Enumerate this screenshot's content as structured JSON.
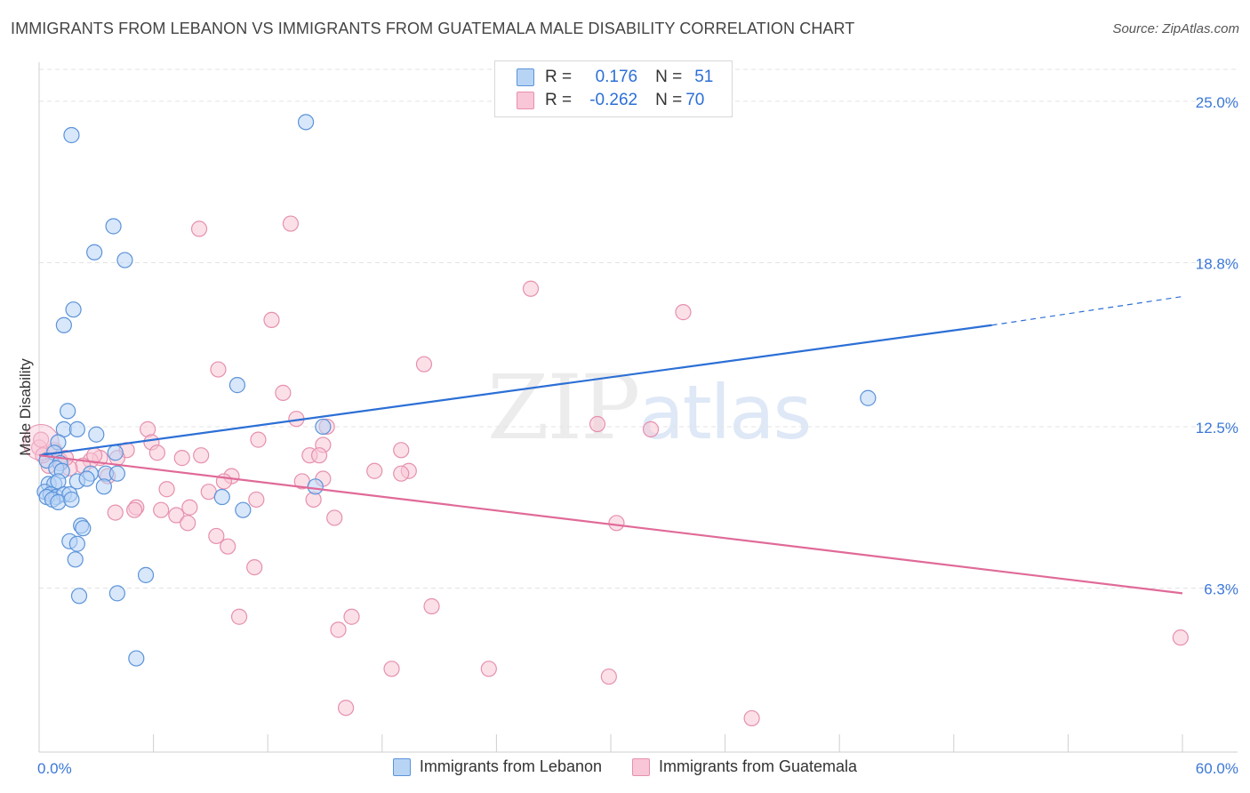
{
  "title": "IMMIGRANTS FROM LEBANON VS IMMIGRANTS FROM GUATEMALA MALE DISABILITY CORRELATION CHART",
  "source": "Source: ZipAtlas.com",
  "watermark": {
    "zip": "ZIP",
    "atlas": "atlas"
  },
  "legend_top": {
    "rows": [
      {
        "r_label": "R =",
        "r_value": "0.176",
        "n_label": "N =",
        "n_value": "51"
      },
      {
        "r_label": "R =",
        "r_value": "-0.262",
        "n_label": "N =",
        "n_value": "70"
      }
    ]
  },
  "legend_bottom": {
    "series1": "Immigrants from Lebanon",
    "series2": "Immigrants from Guatemala"
  },
  "colors": {
    "lebanon_fill": "#b8d4f5",
    "lebanon_stroke": "#5b93d9",
    "lebanon_line": "#2c6fd6",
    "guatemala_fill": "#f8c6d6",
    "guatemala_stroke": "#e690ae",
    "guatemala_line": "#e06a98",
    "axis_label": "#3b78d8",
    "grid": "#e3e3e3"
  },
  "chart_data": {
    "type": "scatter",
    "title": "IMMIGRANTS FROM LEBANON VS IMMIGRANTS FROM GUATEMALA MALE DISABILITY CORRELATION CHART",
    "xlabel": "",
    "ylabel": "Male Disability",
    "xlim": [
      0,
      60
    ],
    "ylim": [
      0,
      26.5
    ],
    "x_tick_labels": [
      {
        "value": 0,
        "label": "0.0%"
      },
      {
        "value": 60,
        "label": "60.0%"
      }
    ],
    "y_ticks": [
      {
        "value": 6.3,
        "label": "6.3%"
      },
      {
        "value": 12.5,
        "label": "12.5%"
      },
      {
        "value": 18.8,
        "label": "18.8%"
      },
      {
        "value": 25.0,
        "label": "25.0%"
      }
    ],
    "series": [
      {
        "name": "Immigrants from Lebanon",
        "r": 0.176,
        "n": 51,
        "trend": {
          "x0": 0,
          "y0": 11.4,
          "x1": 50,
          "y1": 16.4,
          "dashed_to_x": 60,
          "dashed_to_y": 17.5
        },
        "points": [
          [
            1.7,
            23.7
          ],
          [
            14.0,
            24.2
          ],
          [
            3.9,
            20.2
          ],
          [
            2.9,
            19.2
          ],
          [
            4.5,
            18.9
          ],
          [
            1.8,
            17.0
          ],
          [
            1.3,
            16.4
          ],
          [
            10.4,
            14.1
          ],
          [
            43.5,
            13.6
          ],
          [
            1.5,
            13.1
          ],
          [
            1.3,
            12.4
          ],
          [
            2.0,
            12.4
          ],
          [
            3.0,
            12.2
          ],
          [
            14.9,
            12.5
          ],
          [
            1.0,
            11.9
          ],
          [
            4.0,
            11.5
          ],
          [
            0.8,
            11.5
          ],
          [
            0.4,
            11.2
          ],
          [
            1.1,
            11.1
          ],
          [
            0.9,
            10.9
          ],
          [
            1.2,
            10.8
          ],
          [
            2.7,
            10.7
          ],
          [
            3.5,
            10.7
          ],
          [
            4.1,
            10.7
          ],
          [
            0.5,
            10.3
          ],
          [
            0.8,
            10.3
          ],
          [
            1.0,
            10.4
          ],
          [
            2.0,
            10.4
          ],
          [
            2.5,
            10.5
          ],
          [
            3.4,
            10.2
          ],
          [
            14.5,
            10.2
          ],
          [
            0.3,
            10.0
          ],
          [
            0.6,
            9.9
          ],
          [
            0.9,
            9.8
          ],
          [
            1.3,
            9.9
          ],
          [
            1.6,
            9.9
          ],
          [
            0.4,
            9.8
          ],
          [
            0.7,
            9.7
          ],
          [
            1.0,
            9.6
          ],
          [
            1.7,
            9.7
          ],
          [
            9.6,
            9.8
          ],
          [
            10.7,
            9.3
          ],
          [
            2.2,
            8.7
          ],
          [
            2.3,
            8.6
          ],
          [
            1.6,
            8.1
          ],
          [
            2.0,
            8.0
          ],
          [
            1.9,
            7.4
          ],
          [
            5.6,
            6.8
          ],
          [
            2.1,
            6.0
          ],
          [
            4.1,
            6.1
          ],
          [
            5.1,
            3.6
          ]
        ]
      },
      {
        "name": "Immigrants from Guatemala",
        "r": -0.262,
        "n": 70,
        "trend": {
          "x0": 0,
          "y0": 11.4,
          "x1": 60,
          "y1": 6.1
        },
        "points": [
          [
            0.0,
            11.7
          ],
          [
            8.4,
            20.1
          ],
          [
            13.2,
            20.3
          ],
          [
            25.8,
            17.8
          ],
          [
            33.8,
            16.9
          ],
          [
            12.2,
            16.6
          ],
          [
            9.4,
            14.7
          ],
          [
            20.2,
            14.9
          ],
          [
            12.8,
            13.8
          ],
          [
            13.5,
            12.8
          ],
          [
            29.3,
            12.6
          ],
          [
            15.1,
            12.5
          ],
          [
            32.1,
            12.4
          ],
          [
            5.7,
            12.4
          ],
          [
            11.5,
            12.0
          ],
          [
            5.9,
            11.9
          ],
          [
            14.9,
            11.8
          ],
          [
            0.8,
            11.6
          ],
          [
            6.2,
            11.5
          ],
          [
            19.0,
            11.6
          ],
          [
            4.6,
            11.6
          ],
          [
            14.2,
            11.4
          ],
          [
            14.7,
            11.4
          ],
          [
            8.5,
            11.4
          ],
          [
            7.5,
            11.3
          ],
          [
            3.2,
            11.3
          ],
          [
            2.7,
            11.2
          ],
          [
            4.1,
            11.3
          ],
          [
            2.3,
            11.0
          ],
          [
            1.1,
            11.2
          ],
          [
            0.5,
            11.0
          ],
          [
            1.6,
            10.9
          ],
          [
            17.6,
            10.8
          ],
          [
            19.4,
            10.8
          ],
          [
            19.0,
            10.7
          ],
          [
            10.1,
            10.6
          ],
          [
            3.6,
            10.6
          ],
          [
            9.7,
            10.4
          ],
          [
            13.8,
            10.4
          ],
          [
            14.9,
            10.5
          ],
          [
            6.7,
            10.1
          ],
          [
            8.9,
            10.0
          ],
          [
            11.4,
            9.7
          ],
          [
            14.4,
            9.7
          ],
          [
            5.1,
            9.4
          ],
          [
            7.9,
            9.4
          ],
          [
            5.0,
            9.3
          ],
          [
            6.4,
            9.3
          ],
          [
            4.0,
            9.2
          ],
          [
            7.2,
            9.1
          ],
          [
            15.5,
            9.0
          ],
          [
            7.8,
            8.8
          ],
          [
            30.3,
            8.8
          ],
          [
            9.3,
            8.3
          ],
          [
            9.9,
            7.9
          ],
          [
            11.3,
            7.1
          ],
          [
            10.5,
            5.2
          ],
          [
            16.4,
            5.2
          ],
          [
            20.6,
            5.6
          ],
          [
            15.7,
            4.7
          ],
          [
            59.9,
            4.4
          ],
          [
            18.5,
            3.2
          ],
          [
            23.6,
            3.2
          ],
          [
            29.9,
            2.9
          ],
          [
            16.1,
            1.7
          ],
          [
            37.4,
            1.3
          ],
          [
            0.1,
            12.0
          ],
          [
            0.2,
            11.4
          ],
          [
            1.4,
            11.3
          ],
          [
            2.9,
            11.4
          ]
        ]
      }
    ]
  }
}
